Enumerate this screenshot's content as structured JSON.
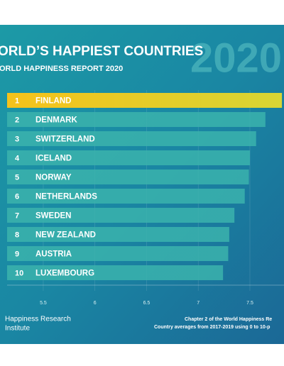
{
  "chart_data": {
    "type": "hbar",
    "title": "ORLD’S HAPPIEST COUNTRIES",
    "subtitle": "ORLD HAPPINESS REPORT 2020",
    "year": "2020",
    "ranks": [
      "1",
      "2",
      "3",
      "4",
      "5",
      "6",
      "7",
      "8",
      "9",
      "10"
    ],
    "categories": [
      "FINLAND",
      "DENMARK",
      "SWITZERLAND",
      "ICELAND",
      "NORWAY",
      "NETHERLANDS",
      "SWEDEN",
      "NEW ZEALAND",
      "AUSTRIA",
      "LUXEMBOURG"
    ],
    "values": [
      7.81,
      7.65,
      7.56,
      7.5,
      7.49,
      7.45,
      7.35,
      7.3,
      7.29,
      7.24
    ],
    "colors": [
      "#f2c81e",
      "#3bb3ad",
      "#3bb3ad",
      "#3bb3ad",
      "#3bb3ad",
      "#3bb3ad",
      "#3bb3ad",
      "#3bb3ad",
      "#3bb3ad",
      "#3bb3ad"
    ],
    "xlim": [
      5.15,
      7.83
    ],
    "xticks": [
      5.5,
      6,
      6.5,
      7,
      7.5
    ],
    "grid": true,
    "source_name": [
      "Happiness Research",
      "Institute"
    ],
    "notes": [
      "Chapter 2 of the World Happiness Re",
      "Country averages from 2017-2019 using 0 to 10-p"
    ]
  }
}
